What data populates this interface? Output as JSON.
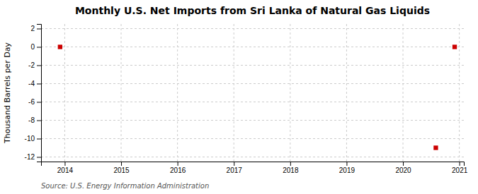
{
  "chart_data": {
    "type": "scatter",
    "title": "Monthly U.S. Net Imports from Sri Lanka of Natural Gas Liquids",
    "ylabel": "Thousand Barrels per Day",
    "annotation": "Source: U.S. Energy Information Administration",
    "x": [
      2013.917,
      2020.583,
      2020.917
    ],
    "values": [
      0.0,
      -11.0,
      0.0
    ],
    "color": "#cc0000",
    "marker": "square",
    "xlim": [
      2013.58,
      2021.08
    ],
    "ylim": [
      -12.5,
      2.5
    ],
    "xticks": [
      2014,
      2015,
      2016,
      2017,
      2018,
      2019,
      2020,
      2021
    ],
    "yticks": [
      2,
      0,
      -2,
      -4,
      -6,
      -8,
      -10,
      -12
    ],
    "grid": true
  }
}
